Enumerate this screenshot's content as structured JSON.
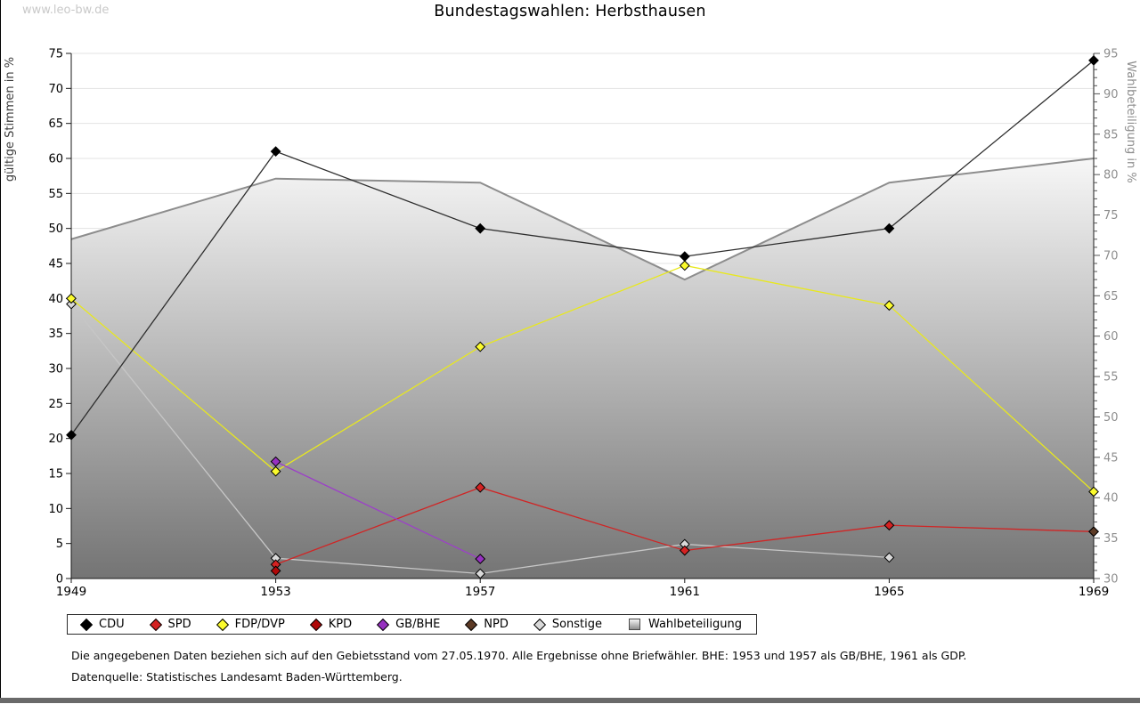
{
  "page": {
    "watermark": "www.leo-bw.de",
    "title": "Bundestagswahlen: Herbsthausen",
    "footnote_line1": "Die angegebenen Daten beziehen sich auf den Gebietsstand vom 27.05.1970. Alle Ergebnisse ohne Briefwähler. BHE: 1953 und 1957 als GB/BHE, 1961 als GDP.",
    "footnote_line2": "Datenquelle: Statistisches Landesamt Baden-Württemberg."
  },
  "chart_data": {
    "type": "line",
    "title": "Bundestagswahlen: Herbsthausen",
    "x": [
      1949,
      1953,
      1957,
      1961,
      1965,
      1969
    ],
    "left_axis": {
      "label": "gültige Stimmen in %",
      "min": 0,
      "max": 75,
      "tick_step": 5,
      "grid": true
    },
    "right_axis": {
      "label": "Wahlbeteiligung in %",
      "min": 30,
      "max": 95,
      "tick_step": 5,
      "minor_tick_step": 1
    },
    "legend_position": "bottom",
    "series": [
      {
        "name": "CDU",
        "axis": "left",
        "style": "line",
        "marker": "diamond",
        "color": "#2e2e2e",
        "marker_color": "#000000",
        "values": [
          20.5,
          61,
          50,
          46,
          50,
          74
        ]
      },
      {
        "name": "SPD",
        "axis": "left",
        "style": "line",
        "marker": "diamond",
        "color": "#d02525",
        "marker_color": "#d42222",
        "values": [
          null,
          2,
          13,
          4,
          7.6,
          6.7
        ]
      },
      {
        "name": "FDP/DVP",
        "axis": "left",
        "style": "line",
        "marker": "diamond",
        "color": "#e8e81e",
        "marker_color": "#fbfb2d",
        "values": [
          40,
          15.3,
          33.1,
          44.7,
          39,
          12.4
        ]
      },
      {
        "name": "KPD",
        "axis": "left",
        "style": "line",
        "marker": "diamond",
        "color": "#b00808",
        "marker_color": "#b00808",
        "values": [
          null,
          1.1,
          null,
          null,
          null,
          null
        ]
      },
      {
        "name": "GB/BHE",
        "axis": "left",
        "style": "line",
        "marker": "diamond",
        "color": "#9c40c8",
        "marker_color": "#9630c0",
        "values": [
          null,
          16.7,
          2.8,
          null,
          null,
          null
        ]
      },
      {
        "name": "NPD",
        "axis": "left",
        "style": "line",
        "marker": "diamond",
        "color": "#5c3a25",
        "marker_color": "#5c3a25",
        "values": [
          null,
          null,
          null,
          null,
          null,
          6.7
        ]
      },
      {
        "name": "Sonstige",
        "axis": "left",
        "style": "line",
        "marker": "diamond",
        "color": "#c6c6c6",
        "marker_color": "#d9d9d9",
        "values": [
          39.2,
          2.9,
          0.7,
          4.9,
          3,
          null
        ]
      },
      {
        "name": "Wahlbeteiligung",
        "axis": "right",
        "style": "area",
        "marker": "square",
        "color": "#8d8d8d",
        "fill_top": "#f9f9f9",
        "fill_bottom": "#747474",
        "values": [
          72,
          79.5,
          79,
          67,
          79,
          82
        ]
      }
    ],
    "draw_order": [
      "Wahlbeteiligung",
      "Sonstige",
      "SPD",
      "KPD",
      "FDP/DVP",
      "GB/BHE",
      "CDU",
      "NPD"
    ],
    "colors": {
      "grid": "#e3e3e3",
      "axis": "#1a1a1a",
      "right_axis_text": "#8e8e8e",
      "left_axis_text": "#000000"
    }
  }
}
